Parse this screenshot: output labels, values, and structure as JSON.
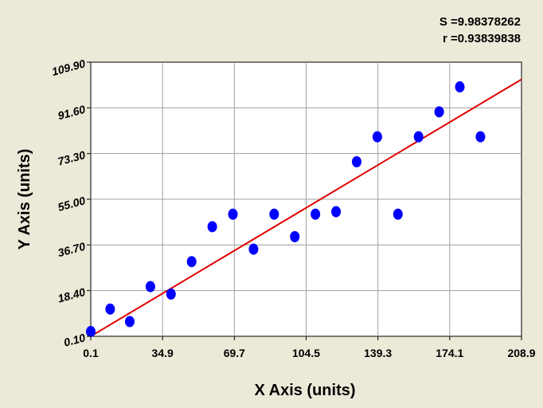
{
  "stats": {
    "s_text": "S =9.98378262",
    "r_text": "r =0.93839838"
  },
  "colors": {
    "background": "#ece9d8",
    "plot_background": "#ffffff",
    "grid": "#a0a0a0",
    "point": "#0000ff",
    "fit_line": "#e00000"
  },
  "chart_data": {
    "type": "scatter",
    "xlabel": "X Axis (units)",
    "ylabel": "Y Axis (units)",
    "xlim": [
      0.1,
      208.9
    ],
    "ylim": [
      0.1,
      109.9
    ],
    "x_ticks": [
      "0.1",
      "34.9",
      "69.7",
      "104.5",
      "139.3",
      "174.1",
      "208.9"
    ],
    "y_ticks": [
      "0.10",
      "18.40",
      "36.70",
      "55.00",
      "73.30",
      "91.60",
      "109.90"
    ],
    "grid": true,
    "series": [
      {
        "points": [
          [
            0.1,
            2
          ],
          [
            9.5,
            11
          ],
          [
            19,
            6
          ],
          [
            29,
            20
          ],
          [
            39,
            17
          ],
          [
            49,
            30
          ],
          [
            59,
            44
          ],
          [
            69,
            49
          ],
          [
            79,
            35
          ],
          [
            89,
            49
          ],
          [
            99,
            40
          ],
          [
            109,
            49
          ],
          [
            119,
            50
          ],
          [
            129,
            70
          ],
          [
            139,
            80
          ],
          [
            149,
            49
          ],
          [
            159,
            80
          ],
          [
            169,
            90
          ],
          [
            179,
            100
          ],
          [
            189,
            80
          ]
        ]
      }
    ],
    "fit_line": {
      "x0": 0.1,
      "y0": 0.1,
      "x1": 208.9,
      "y1": 103
    }
  }
}
